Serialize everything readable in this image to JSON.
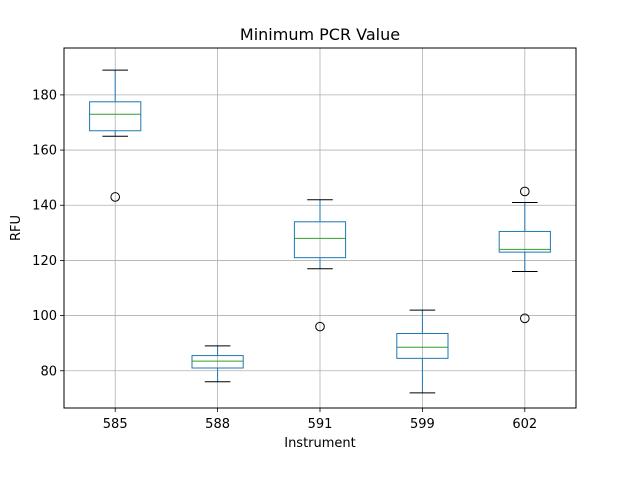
{
  "chart_data": {
    "type": "box",
    "title": "Minimum PCR Value",
    "xlabel": "Instrument",
    "ylabel": "RFU",
    "ylim": [
      66.5,
      197
    ],
    "yticks": [
      80,
      100,
      120,
      140,
      160,
      180
    ],
    "ytick_labels": [
      "80",
      "100",
      "120",
      "140",
      "160",
      "180"
    ],
    "grid": true,
    "colors": {
      "box": "#1f77b4",
      "median": "#2ca02c",
      "whisker": "#1f77b4",
      "cap": "#000000",
      "grid": "#b0b0b0"
    },
    "categories": [
      "585",
      "588",
      "591",
      "599",
      "602"
    ],
    "boxes": [
      {
        "category": "585",
        "whisker_low": 165,
        "q1": 167,
        "median": 173,
        "q3": 177.5,
        "whisker_high": 189,
        "outliers": [
          143
        ]
      },
      {
        "category": "588",
        "whisker_low": 76,
        "q1": 81,
        "median": 83.5,
        "q3": 85.5,
        "whisker_high": 89,
        "outliers": []
      },
      {
        "category": "591",
        "whisker_low": 117,
        "q1": 121,
        "median": 128,
        "q3": 134,
        "whisker_high": 142,
        "outliers": [
          96
        ]
      },
      {
        "category": "599",
        "whisker_low": 72,
        "q1": 84.5,
        "median": 88.5,
        "q3": 93.5,
        "whisker_high": 102,
        "outliers": []
      },
      {
        "category": "602",
        "whisker_low": 116,
        "q1": 123,
        "median": 124,
        "q3": 130.5,
        "whisker_high": 141,
        "outliers": [
          145,
          99
        ]
      }
    ]
  }
}
